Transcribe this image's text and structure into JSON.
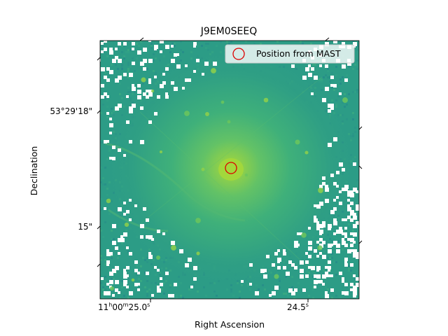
{
  "chart_data": {
    "type": "heatmap",
    "title": "J9EM0SEEQ",
    "xlabel": "Right Ascension",
    "ylabel": "Declination",
    "x_ticks": [
      {
        "h": "11",
        "m": "00",
        "s": "25.0",
        "label": "11h00m25.0s"
      },
      {
        "s": "24.5",
        "label": "24.5s"
      }
    ],
    "y_ticks": [
      "53°29'18\"",
      "15\""
    ],
    "legend": {
      "label": "Position from MAST",
      "placement": "upper right",
      "marker": "open circle",
      "marker_color": "#dd0000"
    },
    "marker": {
      "label": "Position from MAST",
      "color": "#dd0000"
    },
    "colormap": "viridis",
    "colors": {
      "background": "#2c9c86",
      "core": "#a6d83a",
      "masked": "#ffffff"
    },
    "grid": false
  }
}
